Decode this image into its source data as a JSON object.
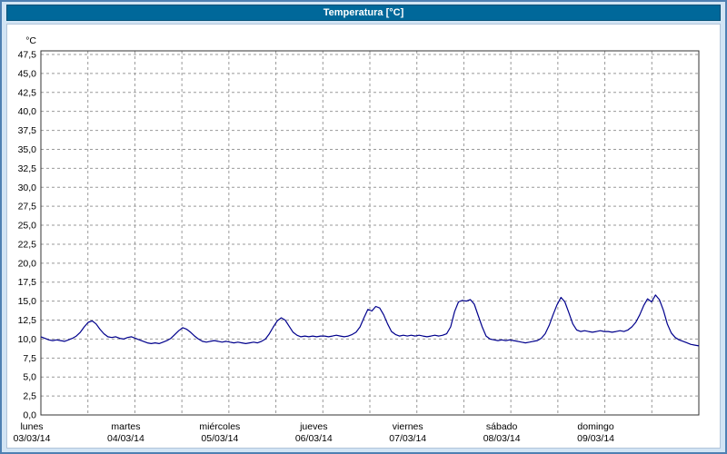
{
  "header": {
    "title": "Temperatura [°C]"
  },
  "colors": {
    "titlebar_bg": "#00689a",
    "frame_bg": "#d2e4f4",
    "frame_border": "#4e80b2",
    "plot_border": "#333333",
    "grid": "#999999",
    "line": "#00008c"
  },
  "chart_data": {
    "type": "line",
    "title": "Temperatura [°C]",
    "ylabel_unit": "°C",
    "xlabel": "",
    "ylim": [
      0,
      47.5
    ],
    "ytick_step": 2.5,
    "grid": "dashed",
    "legend": "none",
    "ytick_labels": [
      "47,5",
      "45,0",
      "42,5",
      "40,0",
      "37,5",
      "35,0",
      "32,5",
      "30,0",
      "27,5",
      "25,0",
      "22,5",
      "20,0",
      "17,5",
      "15,0",
      "12,5",
      "10,0",
      "7,5",
      "5,0",
      "2,5",
      "0,0"
    ],
    "x_days": [
      {
        "name": "lunes",
        "date": "03/03/14"
      },
      {
        "name": "martes",
        "date": "04/03/14"
      },
      {
        "name": "miércoles",
        "date": "05/03/14"
      },
      {
        "name": "jueves",
        "date": "06/03/14"
      },
      {
        "name": "viernes",
        "date": "07/03/14"
      },
      {
        "name": "sábado",
        "date": "08/03/14"
      },
      {
        "name": "domingo",
        "date": "09/03/14"
      }
    ],
    "points_per_day": 24,
    "series": [
      {
        "name": "Temperatura",
        "values": [
          10.3,
          10.1,
          9.9,
          9.8,
          9.9,
          9.8,
          9.7,
          9.9,
          10.1,
          10.4,
          10.9,
          11.6,
          12.2,
          12.4,
          12.0,
          11.3,
          10.7,
          10.3,
          10.2,
          10.3,
          10.1,
          10.0,
          10.2,
          10.3,
          10.1,
          9.9,
          9.7,
          9.5,
          9.4,
          9.5,
          9.4,
          9.6,
          9.8,
          10.1,
          10.6,
          11.1,
          11.5,
          11.3,
          10.9,
          10.4,
          10.0,
          9.7,
          9.6,
          9.7,
          9.8,
          9.7,
          9.6,
          9.7,
          9.6,
          9.5,
          9.6,
          9.5,
          9.4,
          9.5,
          9.6,
          9.5,
          9.7,
          10.0,
          10.7,
          11.6,
          12.4,
          12.8,
          12.5,
          11.7,
          10.9,
          10.5,
          10.3,
          10.4,
          10.3,
          10.4,
          10.3,
          10.4,
          10.4,
          10.3,
          10.4,
          10.5,
          10.4,
          10.3,
          10.4,
          10.6,
          10.9,
          11.6,
          12.8,
          13.9,
          13.7,
          14.3,
          14.1,
          13.2,
          12.0,
          11.0,
          10.6,
          10.4,
          10.5,
          10.4,
          10.5,
          10.4,
          10.5,
          10.4,
          10.3,
          10.4,
          10.5,
          10.4,
          10.5,
          10.7,
          11.6,
          13.6,
          14.9,
          15.1,
          15.0,
          15.2,
          14.6,
          13.1,
          11.6,
          10.4,
          10.0,
          9.9,
          9.8,
          9.9,
          9.8,
          9.9,
          9.8,
          9.7,
          9.6,
          9.5,
          9.6,
          9.7,
          9.8,
          10.1,
          10.7,
          11.8,
          13.2,
          14.5,
          15.5,
          14.9,
          13.5,
          12.0,
          11.2,
          11.0,
          11.1,
          11.0,
          10.9,
          11.0,
          11.1,
          11.0,
          11.0,
          10.9,
          11.0,
          11.1,
          11.0,
          11.2,
          11.6,
          12.2,
          13.2,
          14.4,
          15.3,
          14.9,
          15.8,
          15.2,
          13.8,
          12.0,
          10.8,
          10.2,
          9.9,
          9.7,
          9.5,
          9.3,
          9.2,
          9.1
        ]
      }
    ]
  }
}
